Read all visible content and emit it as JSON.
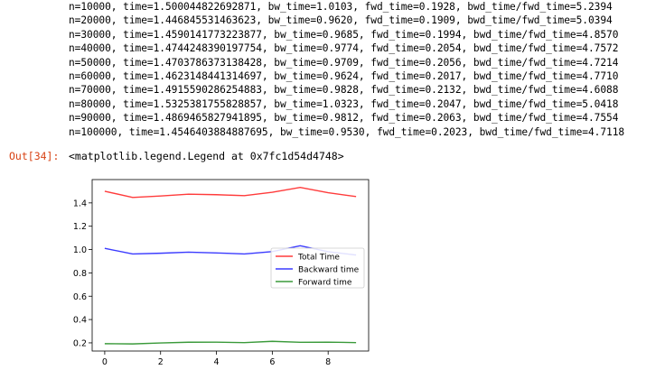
{
  "stdout_lines": [
    "n=10000, time=1.500044822692871, bw_time=1.0103, fwd_time=0.1928, bwd_time/fwd_time=5.2394",
    "n=20000, time=1.446845531463623, bw_time=0.9620, fwd_time=0.1909, bwd_time/fwd_time=5.0394",
    "n=30000, time=1.4590141773223877, bw_time=0.9685, fwd_time=0.1994, bwd_time/fwd_time=4.8570",
    "n=40000, time=1.4744248390197754, bw_time=0.9774, fwd_time=0.2054, bwd_time/fwd_time=4.7572",
    "n=50000, time=1.4703786373138428, bw_time=0.9709, fwd_time=0.2056, bwd_time/fwd_time=4.7214",
    "n=60000, time=1.4623148441314697, bw_time=0.9624, fwd_time=0.2017, bwd_time/fwd_time=4.7710",
    "n=70000, time=1.4915590286254883, bw_time=0.9828, fwd_time=0.2132, bwd_time/fwd_time=4.6088",
    "n=80000, time=1.5325381755828857, bw_time=1.0323, fwd_time=0.2047, bwd_time/fwd_time=5.0418",
    "n=90000, time=1.4869465827941895, bw_time=0.9812, fwd_time=0.2063, bwd_time/fwd_time=4.7554",
    "n=100000, time=1.4546403884887695, bw_time=0.9530, fwd_time=0.2023, bwd_time/fwd_time=4.7118"
  ],
  "output": {
    "prompt": "Out[34]:",
    "text": "<matplotlib.legend.Legend at 0x7fc1d54d4748>"
  },
  "chart_data": {
    "type": "line",
    "x": [
      0,
      1,
      2,
      3,
      4,
      5,
      6,
      7,
      8,
      9
    ],
    "series": [
      {
        "name": "Total Time",
        "color": "#ff3b3b",
        "values": [
          1.5,
          1.4468,
          1.459,
          1.4744,
          1.4704,
          1.4623,
          1.4916,
          1.5325,
          1.4869,
          1.4546
        ]
      },
      {
        "name": "Backward time",
        "color": "#3b3bff",
        "values": [
          1.0103,
          0.962,
          0.9685,
          0.9774,
          0.9709,
          0.9624,
          0.9828,
          1.0323,
          0.9812,
          0.953
        ]
      },
      {
        "name": "Forward time",
        "color": "#3a9a3a",
        "values": [
          0.1928,
          0.1909,
          0.1994,
          0.2054,
          0.2056,
          0.2017,
          0.2132,
          0.2047,
          0.2063,
          0.2023
        ]
      }
    ],
    "xticks": [
      "0",
      "2",
      "4",
      "6",
      "8"
    ],
    "yticks": [
      "0.2",
      "0.4",
      "0.6",
      "0.8",
      "1.0",
      "1.2",
      "1.4"
    ],
    "xlim": [
      -0.45,
      9.45
    ],
    "ylim": [
      0.13,
      1.6
    ],
    "legend": "center-right",
    "grid": false
  }
}
